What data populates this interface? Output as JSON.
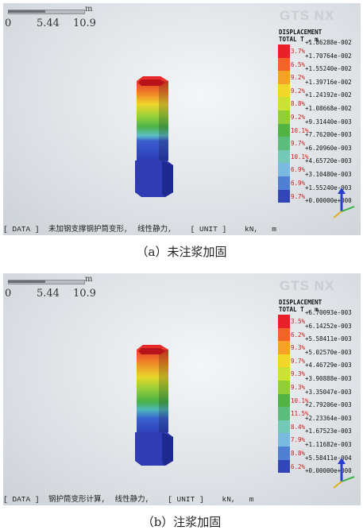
{
  "panels": [
    {
      "id": "a",
      "scale_unit": "m",
      "scale_ticks": [
        "0",
        "5.44",
        "10.9"
      ],
      "logo": "GTS NX",
      "legend_title_1": "DISPLACEMENT",
      "legend_title_2": "TOTAL T , m",
      "legend_values": [
        "+1.86288e-002",
        "+1.70764e-002",
        "+1.55240e-002",
        "+1.39716e-002",
        "+1.24192e-002",
        "+1.08668e-002",
        "+9.31440e-003",
        "+7.76200e-003",
        "+6.20960e-003",
        "+4.65720e-003",
        "+3.10480e-003",
        "+1.55240e-003",
        "+0.00000e+000"
      ],
      "legend_percents": [
        "3.7%",
        "6.5%",
        "9.2%",
        "9.2%",
        "8.8%",
        "9.2%",
        "10.1%",
        "9.7%",
        "10.1%",
        "6.9%",
        "6.9%",
        "9.7%"
      ],
      "status_text": "[ DATA ]  未加钢支撑钢护筒变形,  线性静力,    [ UNIT ]    kN,   m",
      "caption": "（a）未注浆加固"
    },
    {
      "id": "b",
      "scale_unit": "m",
      "scale_ticks": [
        "0",
        "5.44",
        "10.9"
      ],
      "logo": "GTS NX",
      "legend_title_1": "DISPLACEMENT",
      "legend_title_2": "TOTAL T , m",
      "legend_values": [
        "+6.70093e-003",
        "+6.14252e-003",
        "+5.58411e-003",
        "+5.02570e-003",
        "+4.46729e-003",
        "+3.90888e-003",
        "+3.35047e-003",
        "+2.79206e-003",
        "+2.23364e-003",
        "+1.67523e-003",
        "+1.11682e-003",
        "+5.58411e-004",
        "+0.00000e+000"
      ],
      "legend_percents": [
        "3.5%",
        "6.2%",
        "9.3%",
        "9.7%",
        "9.3%",
        "9.3%",
        "10.1%",
        "11.5%",
        "8.4%",
        "7.9%",
        "8.8%",
        "6.2%"
      ],
      "status_text": "[ DATA ]  钢护筒变形计算,  线性静力,    [ UNIT ]    kN,   m",
      "caption": "（b）注浆加固"
    }
  ],
  "colors": {
    "legend_cells": [
      "#e8202a",
      "#f06428",
      "#f6a12a",
      "#f3d62a",
      "#cbe135",
      "#92cd3a",
      "#52b444",
      "#5bbd7c",
      "#74c9b6",
      "#7ab9e0",
      "#4f7fd2",
      "#3246b8"
    ],
    "percent_text": "#d01818"
  },
  "icons": [
    "scale-bar-icon",
    "gts-nx-logo",
    "pile-model-icon",
    "axis-triad-icon"
  ]
}
